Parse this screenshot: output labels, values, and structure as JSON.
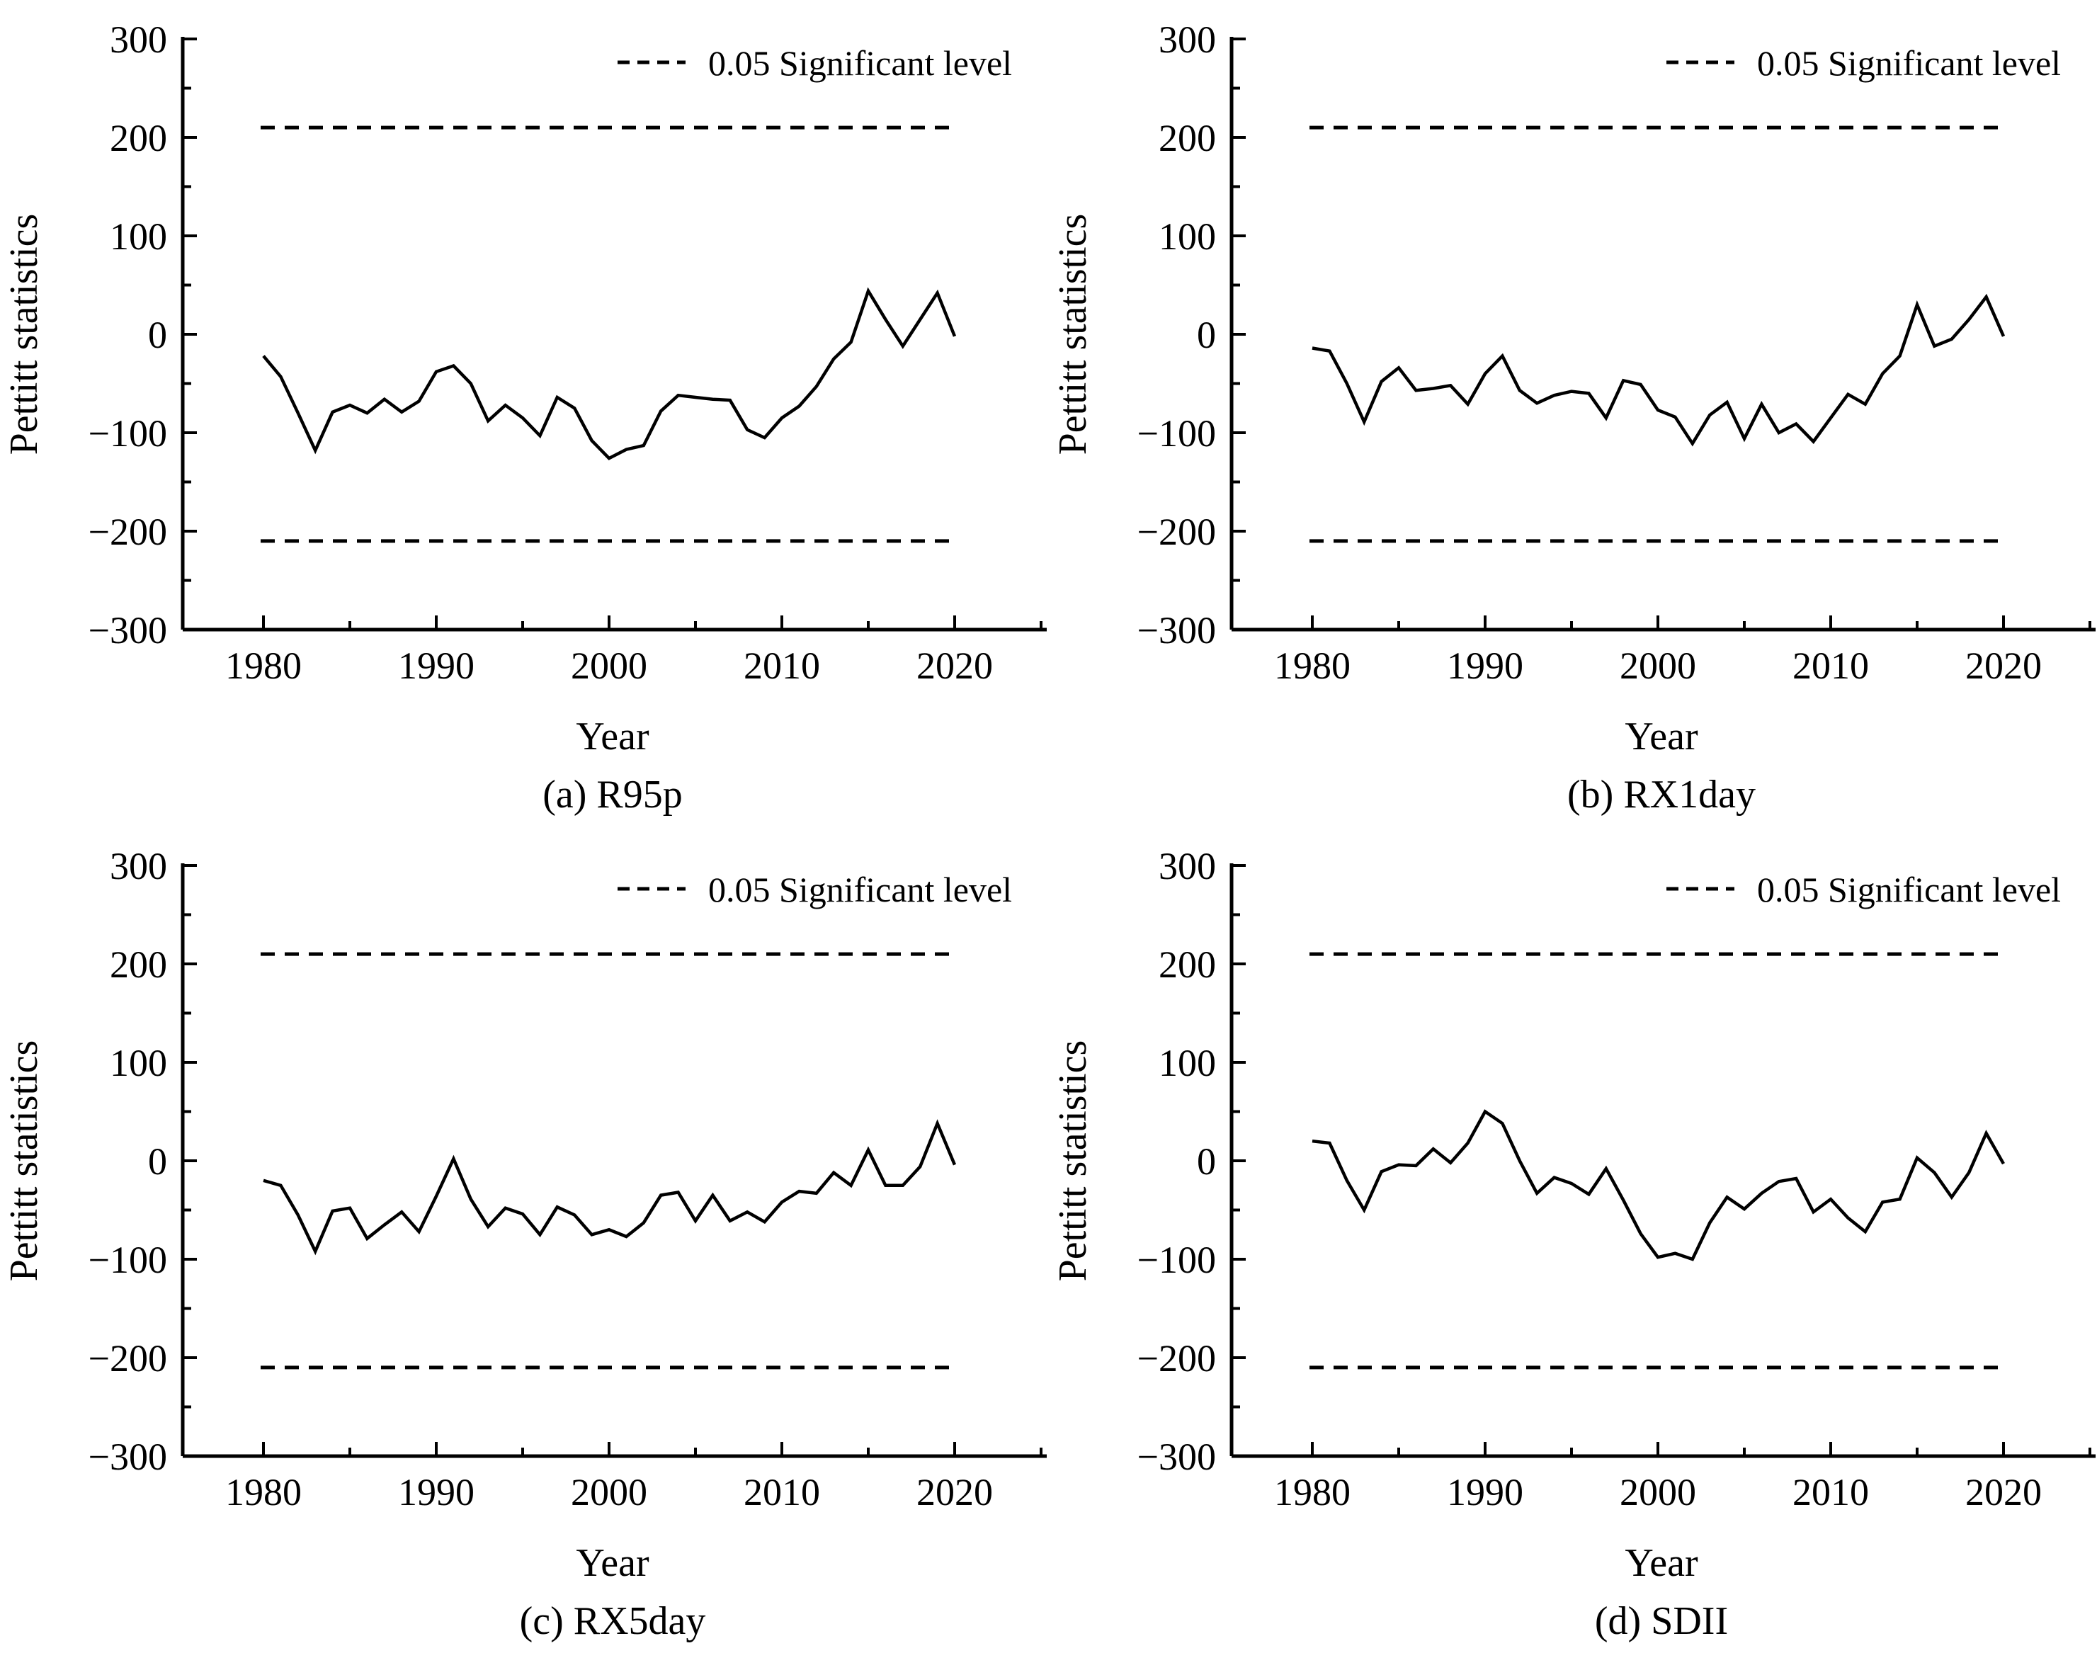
{
  "page": {
    "background": "#ffffff",
    "ink": "#000000"
  },
  "axes": {
    "ylabel": "Pettitt statistics",
    "xlabel": "Year",
    "ylim": [
      -300,
      300
    ],
    "xlim": [
      1975.5,
      2026
    ],
    "ytick_values": [
      300,
      200,
      100,
      0,
      -100,
      -200,
      -300
    ],
    "ytick_labels": [
      "300",
      "200",
      "100",
      "0",
      "−100",
      "−200",
      "−300"
    ],
    "ytick_minor": [
      250,
      150,
      50,
      -50,
      -150,
      -250
    ],
    "xtick_values": [
      1980,
      1990,
      2000,
      2010,
      2020
    ],
    "xtick_labels": [
      "1980",
      "1990",
      "2000",
      "2010",
      "2020"
    ],
    "xtick_minor": [
      1985,
      1995,
      2005,
      2015,
      2025
    ],
    "grid": false
  },
  "legend": {
    "label": "0.05 Significant level",
    "sample": "dashed-line",
    "position": "top-right-inside"
  },
  "significance": {
    "value": 210,
    "lines": [
      210,
      -210
    ],
    "style": "dashed",
    "color": "#000000"
  },
  "chart_data": [
    {
      "type": "line",
      "name": "R95p",
      "caption": "(a) R95p",
      "title": "",
      "xlabel": "Year",
      "ylabel": "Pettitt statistics",
      "ylim": [
        -300,
        300
      ],
      "x": [
        1980,
        1981,
        1982,
        1983,
        1984,
        1985,
        1986,
        1987,
        1988,
        1989,
        1990,
        1991,
        1992,
        1993,
        1994,
        1995,
        1996,
        1997,
        1998,
        1999,
        2000,
        2001,
        2002,
        2003,
        2004,
        2005,
        2006,
        2007,
        2008,
        2009,
        2010,
        2011,
        2012,
        2013,
        2014,
        2015,
        2016,
        2017,
        2018,
        2019,
        2020
      ],
      "values": [
        -22,
        -43,
        -80,
        -118,
        -79,
        -72,
        -80,
        -66,
        -79,
        -68,
        -38,
        -32,
        -50,
        -88,
        -72,
        -85,
        -103,
        -64,
        -75,
        -108,
        -126,
        -117,
        -113,
        -78,
        -62,
        -64,
        -66,
        -67,
        -97,
        -105,
        -85,
        -73,
        -53,
        -25,
        -8,
        44,
        15,
        -12,
        15,
        42,
        -2
      ]
    },
    {
      "type": "line",
      "name": "RX1day",
      "caption": "(b) RX1day",
      "title": "",
      "xlabel": "Year",
      "ylabel": "Pettitt statistics",
      "ylim": [
        -300,
        300
      ],
      "x": [
        1980,
        1981,
        1982,
        1983,
        1984,
        1985,
        1986,
        1987,
        1988,
        1989,
        1990,
        1991,
        1992,
        1993,
        1994,
        1995,
        1996,
        1997,
        1998,
        1999,
        2000,
        2001,
        2002,
        2003,
        2004,
        2005,
        2006,
        2007,
        2008,
        2009,
        2010,
        2011,
        2012,
        2013,
        2014,
        2015,
        2016,
        2017,
        2018,
        2019,
        2020
      ],
      "values": [
        -14,
        -17,
        -50,
        -89,
        -48,
        -34,
        -57,
        -55,
        -52,
        -71,
        -40,
        -22,
        -57,
        -70,
        -62,
        -58,
        -60,
        -85,
        -47,
        -51,
        -77,
        -84,
        -111,
        -82,
        -69,
        -106,
        -71,
        -100,
        -91,
        -109,
        -85,
        -61,
        -71,
        -40,
        -22,
        30,
        -12,
        -5,
        15,
        38,
        -2
      ]
    },
    {
      "type": "line",
      "name": "RX5day",
      "caption": "(c) RX5day",
      "title": "",
      "xlabel": "Year",
      "ylabel": "Pettitt statistics",
      "ylim": [
        -300,
        300
      ],
      "x": [
        1980,
        1981,
        1982,
        1983,
        1984,
        1985,
        1986,
        1987,
        1988,
        1989,
        1990,
        1991,
        1992,
        1993,
        1994,
        1995,
        1996,
        1997,
        1998,
        1999,
        2000,
        2001,
        2002,
        2003,
        2004,
        2005,
        2006,
        2007,
        2008,
        2009,
        2010,
        2011,
        2012,
        2013,
        2014,
        2015,
        2016,
        2017,
        2018,
        2019,
        2020
      ],
      "values": [
        -20,
        -25,
        -55,
        -92,
        -51,
        -48,
        -79,
        -65,
        -52,
        -72,
        -36,
        2,
        -39,
        -67,
        -48,
        -54,
        -75,
        -47,
        -55,
        -75,
        -70,
        -77,
        -63,
        -35,
        -32,
        -61,
        -35,
        -61,
        -52,
        -62,
        -42,
        -31,
        -33,
        -12,
        -25,
        11,
        -25,
        -25,
        -6,
        38,
        -4
      ]
    },
    {
      "type": "line",
      "name": "SDII",
      "caption": "(d) SDII",
      "title": "",
      "xlabel": "Year",
      "ylabel": "Pettitt statistics",
      "ylim": [
        -300,
        300
      ],
      "x": [
        1980,
        1981,
        1982,
        1983,
        1984,
        1985,
        1986,
        1987,
        1988,
        1989,
        1990,
        1991,
        1992,
        1993,
        1994,
        1995,
        1996,
        1997,
        1998,
        1999,
        2000,
        2001,
        2002,
        2003,
        2004,
        2005,
        2006,
        2007,
        2008,
        2009,
        2010,
        2011,
        2012,
        2013,
        2014,
        2015,
        2016,
        2017,
        2018,
        2019,
        2020
      ],
      "values": [
        20,
        18,
        -20,
        -50,
        -11,
        -4,
        -5,
        12,
        -2,
        18,
        50,
        38,
        0,
        -33,
        -17,
        -23,
        -34,
        -8,
        -40,
        -74,
        -98,
        -94,
        -100,
        -63,
        -37,
        -49,
        -33,
        -21,
        -18,
        -52,
        -39,
        -58,
        -72,
        -42,
        -39,
        3,
        -12,
        -37,
        -12,
        28,
        -3
      ]
    }
  ]
}
